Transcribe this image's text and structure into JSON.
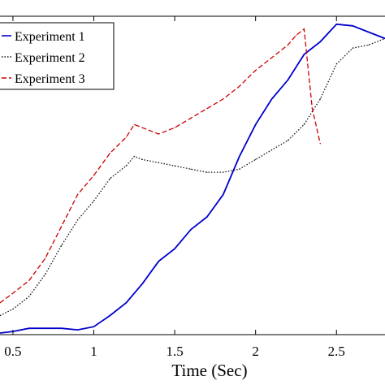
{
  "chart_data": {
    "type": "line",
    "title": "",
    "xlabel": "Time (Sec)",
    "ylabel": "",
    "xlim": [
      0.42,
      2.8
    ],
    "ylim": [
      0,
      1
    ],
    "x_ticks": [
      0.5,
      1,
      1.5,
      2,
      2.5
    ],
    "x_tick_labels": [
      "0.5",
      "1",
      "1.5",
      "2",
      "2.5"
    ],
    "grid": false,
    "legend_position": "top-left",
    "series": [
      {
        "name": "Experiment 1",
        "color": "#0000cc",
        "style": "solid",
        "x": [
          0.42,
          0.5,
          0.6,
          0.7,
          0.8,
          0.9,
          1.0,
          1.1,
          1.2,
          1.3,
          1.4,
          1.5,
          1.6,
          1.7,
          1.8,
          1.9,
          2.0,
          2.1,
          2.2,
          2.3,
          2.4,
          2.5,
          2.6,
          2.7,
          2.8
        ],
        "y": [
          0.005,
          0.01,
          0.02,
          0.02,
          0.02,
          0.015,
          0.025,
          0.06,
          0.1,
          0.16,
          0.23,
          0.27,
          0.33,
          0.37,
          0.44,
          0.56,
          0.66,
          0.74,
          0.8,
          0.88,
          0.92,
          0.975,
          0.97,
          0.95,
          0.93
        ]
      },
      {
        "name": "Experiment 2",
        "color": "#111111",
        "style": "dotted",
        "x": [
          0.42,
          0.5,
          0.6,
          0.7,
          0.8,
          0.9,
          1.0,
          1.1,
          1.2,
          1.25,
          1.3,
          1.4,
          1.5,
          1.6,
          1.7,
          1.8,
          1.9,
          2.0,
          2.1,
          2.2,
          2.3,
          2.4,
          2.5,
          2.6,
          2.7,
          2.8
        ],
        "y": [
          0.06,
          0.08,
          0.12,
          0.19,
          0.28,
          0.36,
          0.42,
          0.49,
          0.53,
          0.56,
          0.55,
          0.54,
          0.53,
          0.52,
          0.51,
          0.51,
          0.52,
          0.55,
          0.58,
          0.61,
          0.66,
          0.74,
          0.85,
          0.9,
          0.91,
          0.93
        ]
      },
      {
        "name": "Experiment 3",
        "color": "#cc0000",
        "style": "dashed",
        "x": [
          0.42,
          0.5,
          0.6,
          0.7,
          0.8,
          0.9,
          1.0,
          1.1,
          1.2,
          1.25,
          1.3,
          1.4,
          1.5,
          1.6,
          1.7,
          1.8,
          1.9,
          2.0,
          2.1,
          2.2,
          2.25,
          2.3,
          2.35,
          2.4
        ],
        "y": [
          0.1,
          0.13,
          0.17,
          0.24,
          0.34,
          0.44,
          0.5,
          0.57,
          0.62,
          0.66,
          0.65,
          0.63,
          0.65,
          0.68,
          0.71,
          0.74,
          0.78,
          0.83,
          0.87,
          0.91,
          0.94,
          0.96,
          0.71,
          0.6
        ]
      }
    ]
  }
}
